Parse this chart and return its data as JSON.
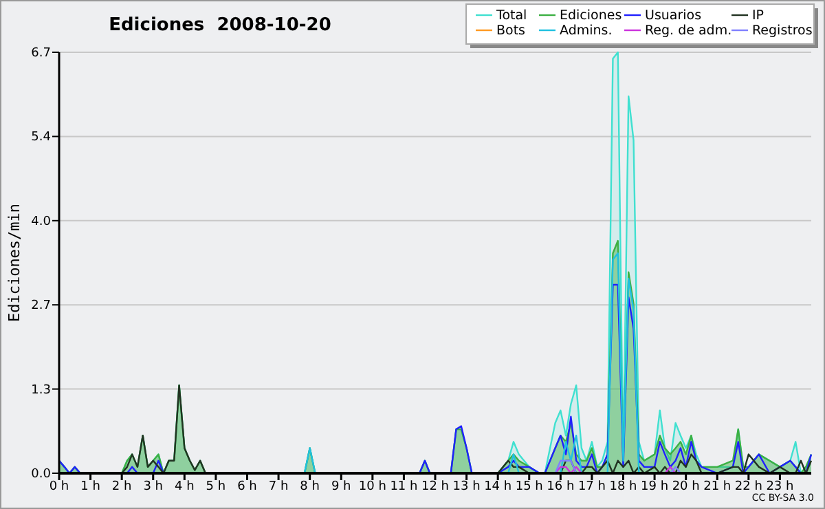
{
  "chart_data": {
    "type": "line",
    "title": "Ediciones  2008-10-20",
    "ylabel": "Ediciones/min",
    "annotations": [
      "CC BY-SA 3.0"
    ],
    "x": [
      0,
      0.17,
      0.33,
      0.5,
      0.67,
      0.83,
      1,
      2,
      2.17,
      2.33,
      2.5,
      2.67,
      2.83,
      3,
      3.17,
      3.33,
      3.5,
      3.67,
      3.83,
      4,
      4.17,
      4.33,
      4.5,
      4.67,
      7.83,
      8,
      8.17,
      11.5,
      11.67,
      11.83,
      12.5,
      12.67,
      12.83,
      13,
      13.17,
      14,
      14.33,
      14.5,
      14.67,
      15,
      15.33,
      15.5,
      15.83,
      16,
      16.17,
      16.33,
      16.5,
      16.67,
      16.83,
      17,
      17.17,
      17.33,
      17.5,
      17.67,
      17.83,
      18,
      18.17,
      18.33,
      18.5,
      18.67,
      19,
      19.17,
      19.33,
      19.5,
      19.67,
      19.83,
      20,
      20.17,
      20.33,
      20.5,
      21,
      21.5,
      21.67,
      21.83,
      22,
      22.33,
      22.67,
      23,
      23.33,
      23.5,
      23.67,
      23.83,
      24
    ],
    "series": [
      {
        "name": "Total",
        "type": "area",
        "color": "#40e0d0",
        "values": [
          0.2,
          0.1,
          0,
          0.1,
          0,
          0,
          0,
          0,
          0.2,
          0.3,
          0.1,
          0.6,
          0.1,
          0.2,
          0.3,
          0,
          0.2,
          0.2,
          1.4,
          0.4,
          0.2,
          0.05,
          0.2,
          0,
          0,
          0.4,
          0,
          0,
          0.2,
          0,
          0,
          0.7,
          0.7,
          0.4,
          0,
          0,
          0.2,
          0.5,
          0.3,
          0.1,
          0,
          0,
          0.8,
          1.0,
          0.6,
          1.1,
          1.4,
          0.4,
          0.2,
          0.5,
          0.1,
          0.2,
          0.5,
          6.6,
          6.7,
          0.2,
          6.0,
          5.3,
          0.5,
          0.2,
          0.3,
          1.0,
          0.4,
          0.2,
          0.8,
          0.6,
          0.4,
          0.6,
          0.3,
          0.1,
          0.1,
          0.1,
          0.7,
          0.1,
          0.1,
          0.3,
          0.2,
          0.1,
          0.2,
          0.5,
          0,
          0.1,
          0.3
        ]
      },
      {
        "name": "Ediciones",
        "type": "area",
        "color": "#3cb043",
        "values": [
          0.2,
          0.1,
          0,
          0.1,
          0,
          0,
          0,
          0,
          0.2,
          0.3,
          0.1,
          0.6,
          0.1,
          0.2,
          0.3,
          0,
          0.2,
          0.2,
          1.4,
          0.4,
          0.2,
          0.05,
          0.2,
          0,
          0,
          0.4,
          0,
          0,
          0.2,
          0,
          0,
          0.7,
          0.7,
          0.4,
          0,
          0,
          0.2,
          0.3,
          0.2,
          0.1,
          0,
          0,
          0.4,
          0.6,
          0.5,
          0.8,
          0.3,
          0.2,
          0.2,
          0.4,
          0.1,
          0.1,
          0.3,
          3.5,
          3.7,
          0.2,
          3.2,
          2.7,
          0.3,
          0.2,
          0.3,
          0.6,
          0.4,
          0.3,
          0.4,
          0.5,
          0.3,
          0.6,
          0.2,
          0.1,
          0.1,
          0.2,
          0.7,
          0.1,
          0.1,
          0.3,
          0.2,
          0.1,
          0.2,
          0.1,
          0,
          0.1,
          0.3
        ]
      },
      {
        "name": "Usuarios",
        "color": "#2020ff",
        "values": [
          0.2,
          0.1,
          0,
          0.1,
          0,
          0,
          0,
          0,
          0,
          0.1,
          0,
          0,
          0,
          0,
          0.2,
          0,
          0,
          0,
          0,
          0,
          0,
          0,
          0,
          0,
          0,
          0,
          0,
          0,
          0.2,
          0,
          0,
          0.7,
          0.75,
          0.4,
          0,
          0,
          0.1,
          0.2,
          0.1,
          0.1,
          0,
          0,
          0.4,
          0.6,
          0.3,
          0.9,
          0.2,
          0.1,
          0.1,
          0.3,
          0,
          0.1,
          0.3,
          3.0,
          3.0,
          0.1,
          2.8,
          2.3,
          0.2,
          0.1,
          0.1,
          0.5,
          0.3,
          0.1,
          0.2,
          0.4,
          0.1,
          0.5,
          0.2,
          0.1,
          0,
          0.1,
          0.5,
          0,
          0.1,
          0.3,
          0,
          0.1,
          0.2,
          0.1,
          0,
          0,
          0.3
        ]
      },
      {
        "name": "IP",
        "color": "#223322",
        "values": [
          0,
          0,
          0,
          0,
          0,
          0,
          0,
          0,
          0.1,
          0.3,
          0.1,
          0.6,
          0.1,
          0.2,
          0.1,
          0,
          0.2,
          0.2,
          1.4,
          0.4,
          0.2,
          0.05,
          0.2,
          0,
          0,
          0,
          0,
          0,
          0,
          0,
          0,
          0,
          0,
          0,
          0,
          0,
          0.2,
          0.1,
          0.1,
          0,
          0,
          0,
          0,
          0,
          0.2,
          0.2,
          0,
          0,
          0.1,
          0.1,
          0,
          0.1,
          0.2,
          0,
          0.2,
          0.1,
          0.2,
          0,
          0.1,
          0,
          0.1,
          0,
          0.1,
          0,
          0,
          0.2,
          0.1,
          0.3,
          0.2,
          0,
          0,
          0.1,
          0.1,
          0,
          0.3,
          0.1,
          0,
          0.1,
          0,
          0,
          0.2,
          0,
          0.2
        ]
      },
      {
        "name": "Bots",
        "color": "#ff9922",
        "values": [
          null,
          null,
          null,
          null,
          null,
          null,
          null,
          null,
          null,
          null,
          null,
          null,
          null,
          null,
          null,
          null,
          null,
          null,
          null,
          null,
          null,
          null,
          null,
          null,
          null,
          null,
          null,
          null,
          null,
          null,
          null,
          null,
          null,
          null,
          null,
          null,
          null,
          null,
          null,
          null,
          null,
          null,
          null,
          null,
          null,
          null,
          null,
          null,
          null,
          null,
          null,
          null,
          null,
          null,
          null,
          null,
          null,
          null,
          null,
          null,
          null,
          null,
          null,
          null,
          null,
          null,
          null,
          null,
          null,
          null,
          null,
          null,
          null,
          null,
          null,
          null,
          null,
          null,
          null,
          null,
          null,
          null,
          null
        ]
      },
      {
        "name": "Admins.",
        "color": "#20c0e0",
        "x": [
          7.83,
          8,
          8.17,
          14.33,
          14.5,
          14.67,
          16,
          16.17,
          16.33,
          16.5,
          16.67,
          17.5,
          17.67,
          17.83,
          18,
          18.17,
          18.33,
          18.5
        ],
        "values": [
          0,
          0.4,
          0,
          0,
          0.3,
          0,
          0,
          0.5,
          0.2,
          0.6,
          0,
          0,
          3.4,
          3.5,
          0.2,
          3.1,
          2.6,
          0
        ]
      },
      {
        "name": "Reg. de adm.",
        "color": "#cc33dd",
        "x": [
          15.83,
          16,
          16.17,
          16.33,
          16.5,
          16.67,
          17,
          19.33,
          19.5,
          19.67
        ],
        "values": [
          0,
          0.1,
          0.1,
          0,
          0.1,
          0,
          null,
          0,
          0.1,
          0
        ]
      },
      {
        "name": "Registros",
        "color": "#8080ff",
        "x": [
          15.83,
          16,
          16.33,
          16.5,
          17,
          19.5,
          19.67,
          19.83
        ],
        "values": [
          0,
          0.2,
          0.2,
          0,
          null,
          0,
          0.1,
          0
        ]
      }
    ],
    "xlim": [
      0,
      24
    ],
    "xticks": [
      {
        "value": 0,
        "label": "0 h"
      },
      {
        "value": 1,
        "label": "1 h"
      },
      {
        "value": 2,
        "label": "2 h"
      },
      {
        "value": 3,
        "label": "3 h"
      },
      {
        "value": 4,
        "label": "4 h"
      },
      {
        "value": 5,
        "label": "5 h"
      },
      {
        "value": 6,
        "label": "6 h"
      },
      {
        "value": 7,
        "label": "7 h"
      },
      {
        "value": 8,
        "label": "8 h"
      },
      {
        "value": 9,
        "label": "9 h"
      },
      {
        "value": 10,
        "label": "10 h"
      },
      {
        "value": 11,
        "label": "11 h"
      },
      {
        "value": 12,
        "label": "12 h"
      },
      {
        "value": 13,
        "label": "13 h"
      },
      {
        "value": 14,
        "label": "14 h"
      },
      {
        "value": 15,
        "label": "15 h"
      },
      {
        "value": 16,
        "label": "16 h"
      },
      {
        "value": 17,
        "label": "17 h"
      },
      {
        "value": 18,
        "label": "18 h"
      },
      {
        "value": 19,
        "label": "19 h"
      },
      {
        "value": 20,
        "label": "20 h"
      },
      {
        "value": 21,
        "label": "21 h"
      },
      {
        "value": 22,
        "label": "22 h"
      },
      {
        "value": 23,
        "label": "23 h"
      }
    ],
    "ylim": [
      0,
      6.7
    ],
    "yticks": [
      {
        "value": 0,
        "label": "0.0"
      },
      {
        "value": 1.34,
        "label": "1.3"
      },
      {
        "value": 2.68,
        "label": "2.7"
      },
      {
        "value": 4.02,
        "label": "4.0"
      },
      {
        "value": 5.36,
        "label": "5.4"
      },
      {
        "value": 6.7,
        "label": "6.7"
      }
    ],
    "grid": "y",
    "legend": "top right",
    "marker": "none",
    "line_style": "solid"
  }
}
